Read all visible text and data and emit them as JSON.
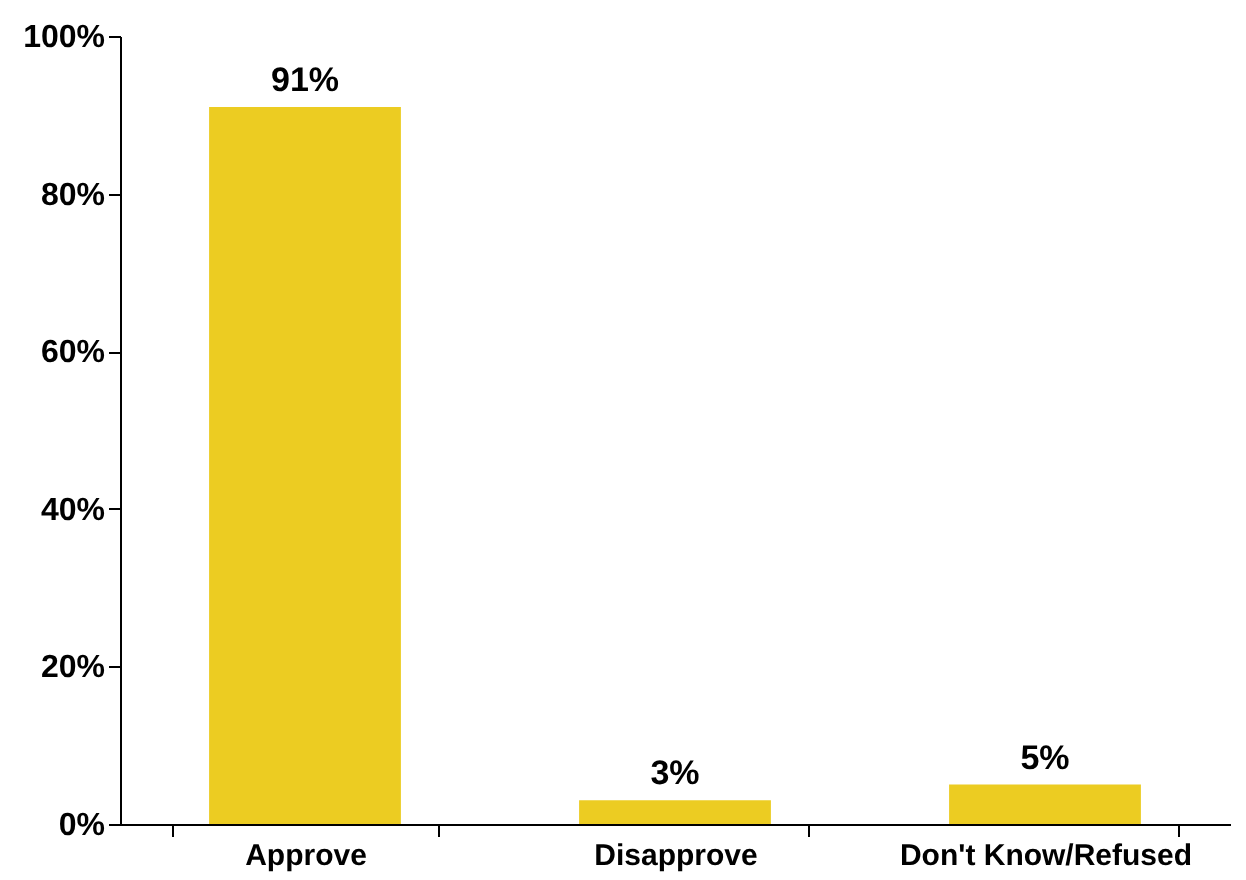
{
  "chart_data": {
    "type": "bar",
    "categories": [
      "Approve",
      "Disapprove",
      "Don't Know/Refused"
    ],
    "values": [
      91,
      3,
      5
    ],
    "color": "#eccc22",
    "ylim": [
      0,
      100
    ],
    "yticks": [
      {
        "value": 0,
        "label": "0%"
      },
      {
        "value": 20,
        "label": "20%"
      },
      {
        "value": 40,
        "label": "40%"
      },
      {
        "value": 60,
        "label": "60%"
      },
      {
        "value": 80,
        "label": "80%"
      },
      {
        "value": 100,
        "label": "100%"
      }
    ],
    "value_labels": [
      "91%",
      "3%",
      "5%"
    ],
    "grid": false
  }
}
